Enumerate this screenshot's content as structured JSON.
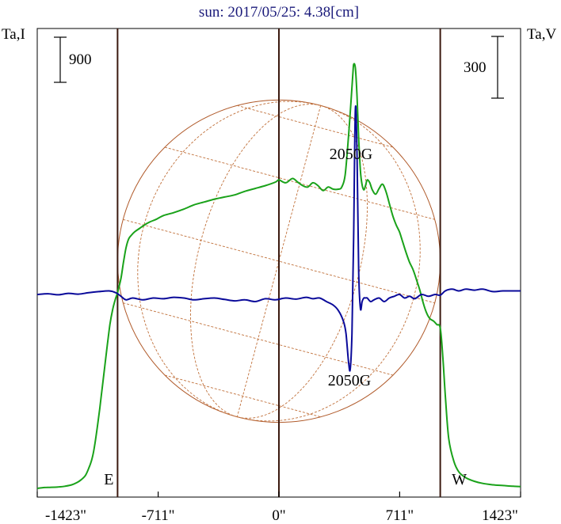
{
  "chart_data": {
    "type": "line",
    "title": "sun: 2017/05/25: 4.38[cm]",
    "ylabel_left": "Ta,I",
    "ylabel_right": "Ta,V",
    "scalebar_left_label": "900",
    "scalebar_right_label": "300",
    "limb_labels": {
      "east": "E",
      "west": "W"
    },
    "annotations": {
      "intensity_peak": "2050G",
      "polarization_peak": "2050G"
    },
    "x_ticks": [
      {
        "value": -1423,
        "label": "-1423\""
      },
      {
        "value": -711,
        "label": "-711\""
      },
      {
        "value": 0,
        "label": "0\""
      },
      {
        "value": 711,
        "label": "711\""
      },
      {
        "value": 1423,
        "label": "1423\""
      }
    ],
    "xlim": [
      -1423,
      1423
    ],
    "vlines": [
      -711,
      0,
      711
    ],
    "limbs": [
      -950,
      950
    ],
    "disk_radius": 950,
    "series": [
      {
        "key": "intensity",
        "color": "#1aa21a",
        "x": [
          -1423,
          -1380,
          -1340,
          -1300,
          -1260,
          -1220,
          -1190,
          -1165,
          -1140,
          -1120,
          -1100,
          -1085,
          -1070,
          -1055,
          -1040,
          -1025,
          -1010,
          -995,
          -980,
          -965,
          -950,
          -930,
          -915,
          -900,
          -885,
          -870,
          -850,
          -820,
          -790,
          -760,
          -720,
          -680,
          -620,
          -560,
          -500,
          -440,
          -380,
          -320,
          -260,
          -200,
          -140,
          -80,
          -20,
          0,
          40,
          80,
          110,
          140,
          170,
          200,
          230,
          260,
          290,
          320,
          350,
          370,
          390,
          410,
          425,
          435,
          440,
          450,
          460,
          470,
          480,
          490,
          500,
          510,
          520,
          535,
          550,
          570,
          590,
          610,
          630,
          650,
          670,
          690,
          710,
          730,
          750,
          770,
          790,
          810,
          830,
          850,
          870,
          890,
          910,
          930,
          950,
          965,
          980,
          1000,
          1030,
          1060,
          1100,
          1150,
          1200,
          1260,
          1320,
          1380,
          1423
        ],
        "y": [
          0,
          12,
          15,
          20,
          30,
          50,
          80,
          120,
          180,
          280,
          420,
          600,
          850,
          1120,
          1420,
          1720,
          2020,
          2300,
          2500,
          2640,
          2750,
          2950,
          3180,
          3380,
          3500,
          3550,
          3600,
          3650,
          3700,
          3740,
          3780,
          3830,
          3870,
          3920,
          3980,
          4020,
          4060,
          4090,
          4120,
          4170,
          4210,
          4250,
          4300,
          4330,
          4290,
          4350,
          4300,
          4250,
          4230,
          4290,
          4250,
          4180,
          4230,
          4200,
          4200,
          4230,
          4400,
          4950,
          5450,
          5800,
          5950,
          5900,
          5500,
          4900,
          4450,
          4260,
          4190,
          4250,
          4330,
          4290,
          4190,
          4130,
          4210,
          4270,
          4170,
          4000,
          3830,
          3700,
          3600,
          3450,
          3300,
          3170,
          3070,
          2930,
          2780,
          2600,
          2460,
          2380,
          2350,
          2300,
          2250,
          1850,
          1300,
          700,
          380,
          230,
          150,
          100,
          70,
          50,
          40,
          30,
          25
        ]
      },
      {
        "key": "polarization",
        "color": "#0a0a9a",
        "x": [
          -1423,
          -1360,
          -1300,
          -1240,
          -1180,
          -1120,
          -1060,
          -1000,
          -960,
          -930,
          -900,
          -860,
          -800,
          -740,
          -680,
          -620,
          -560,
          -500,
          -440,
          -380,
          -320,
          -260,
          -200,
          -140,
          -80,
          -20,
          40,
          100,
          160,
          200,
          240,
          280,
          320,
          350,
          380,
          395,
          410,
          420,
          430,
          440,
          450,
          460,
          470,
          480,
          490,
          500,
          510,
          520,
          540,
          560,
          590,
          620,
          650,
          680,
          710,
          740,
          770,
          800,
          840,
          880,
          920,
          950,
          980,
          1020,
          1060,
          1100,
          1150,
          1200,
          1260,
          1320,
          1380,
          1423
        ],
        "y": [
          0,
          2,
          -1,
          3,
          1,
          5,
          8,
          10,
          5,
          -5,
          -15,
          -10,
          -15,
          -10,
          -12,
          -8,
          -10,
          -15,
          -12,
          -10,
          -14,
          -18,
          -15,
          -20,
          -12,
          -15,
          -10,
          -13,
          -8,
          -12,
          -10,
          -20,
          -30,
          -45,
          -75,
          -110,
          -190,
          -210,
          -110,
          160,
          520,
          390,
          60,
          -40,
          -20,
          -10,
          -10,
          -10,
          -20,
          -15,
          -10,
          -20,
          -10,
          -5,
          0,
          -10,
          -5,
          -12,
          0,
          -5,
          0,
          -2,
          10,
          15,
          10,
          15,
          12,
          15,
          8,
          10,
          10,
          10
        ]
      }
    ]
  }
}
